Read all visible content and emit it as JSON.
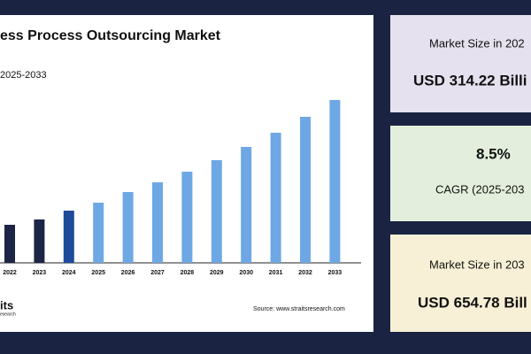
{
  "chart_data": {
    "type": "bar",
    "title": "ess Process Outsourcing Market",
    "subtitle": "2025-2033",
    "categories": [
      "2022",
      "2023",
      "2024",
      "2025",
      "2026",
      "2027",
      "2028",
      "2029",
      "2030",
      "2031",
      "2032",
      "2033"
    ],
    "values": [
      43,
      49,
      59,
      68,
      80,
      91,
      103,
      116,
      131,
      147,
      165,
      184
    ],
    "colors": [
      "#1c2546",
      "#1c2546",
      "#1e4a9a",
      "#6ea8e4",
      "#6ea8e4",
      "#6ea8e4",
      "#6ea8e4",
      "#6ea8e4",
      "#6ea8e4",
      "#6ea8e4",
      "#6ea8e4",
      "#6ea8e4"
    ],
    "source": "Source: www.straitsresearch.com",
    "logo": "its",
    "logo_sub": "esearch"
  },
  "cards": [
    {
      "label": "Market Size in 202",
      "value": "USD 314.22 Billi"
    },
    {
      "value": "8.5%",
      "label": "CAGR (2025-203"
    },
    {
      "label": "Market Size in 203",
      "value": "USD 654.78 Bill"
    }
  ]
}
